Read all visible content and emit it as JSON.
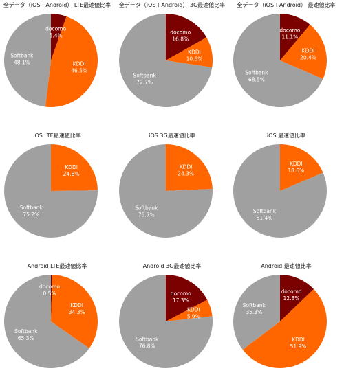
{
  "colors": {
    "docomo": "#7B0000",
    "KDDI": "#FF6600",
    "Softbank": "#A0A0A0"
  },
  "chart_data": [
    {
      "type": "pie",
      "title": "全データ（iOS＋Android） LTE最速値比率",
      "slices": [
        {
          "name": "docomo",
          "value": 5.4,
          "label": "5.4%"
        },
        {
          "name": "KDDI",
          "value": 46.5,
          "label": "46.5%"
        },
        {
          "name": "Softbank",
          "value": 48.1,
          "label": "48.1%"
        }
      ]
    },
    {
      "type": "pie",
      "title": "全データ（iOS＋Android） 3G最速値比率",
      "slices": [
        {
          "name": "docomo",
          "value": 16.8,
          "label": "16.8%"
        },
        {
          "name": "KDDI",
          "value": 10.6,
          "label": "10.6%"
        },
        {
          "name": "Softbank",
          "value": 72.7,
          "label": "72.7%"
        }
      ]
    },
    {
      "type": "pie",
      "title": "全データ（iOS＋Android） 最速値比率",
      "slices": [
        {
          "name": "docomo",
          "value": 11.1,
          "label": "11.1%"
        },
        {
          "name": "KDDI",
          "value": 20.4,
          "label": "20.4%"
        },
        {
          "name": "Softbank",
          "value": 68.5,
          "label": "68.5%"
        }
      ]
    },
    {
      "type": "pie",
      "title": "iOS LTE最速値比率",
      "slices": [
        {
          "name": "KDDI",
          "value": 24.8,
          "label": "24.8%"
        },
        {
          "name": "Softbank",
          "value": 75.2,
          "label": "75.2%"
        }
      ]
    },
    {
      "type": "pie",
      "title": "iOS 3G最速値比率",
      "slices": [
        {
          "name": "KDDI",
          "value": 24.3,
          "label": "24.3%"
        },
        {
          "name": "Softbank",
          "value": 75.7,
          "label": "75.7%"
        }
      ]
    },
    {
      "type": "pie",
      "title": "iOS 最速値比率",
      "slices": [
        {
          "name": "KDDI",
          "value": 18.6,
          "label": "18.6%"
        },
        {
          "name": "Softbank",
          "value": 81.4,
          "label": "81.4%"
        }
      ]
    },
    {
      "type": "pie",
      "title": "Android LTE最速値比率",
      "slices": [
        {
          "name": "docomo",
          "value": 0.5,
          "label": "0.5%"
        },
        {
          "name": "KDDI",
          "value": 34.3,
          "label": "34.3%"
        },
        {
          "name": "Softbank",
          "value": 65.3,
          "label": "65.3%"
        }
      ]
    },
    {
      "type": "pie",
      "title": "Android 3G最速値比率",
      "slices": [
        {
          "name": "docomo",
          "value": 17.3,
          "label": "17.3%"
        },
        {
          "name": "KDDI",
          "value": 5.9,
          "label": "5.9%"
        },
        {
          "name": "Softbank",
          "value": 76.8,
          "label": "76.8%"
        }
      ]
    },
    {
      "type": "pie",
      "title": "Android 最速値比率",
      "slices": [
        {
          "name": "docomo",
          "value": 12.8,
          "label": "12.8%"
        },
        {
          "name": "KDDI",
          "value": 51.9,
          "label": "51.9%"
        },
        {
          "name": "Softbank",
          "value": 35.3,
          "label": "35.3%"
        }
      ]
    }
  ]
}
